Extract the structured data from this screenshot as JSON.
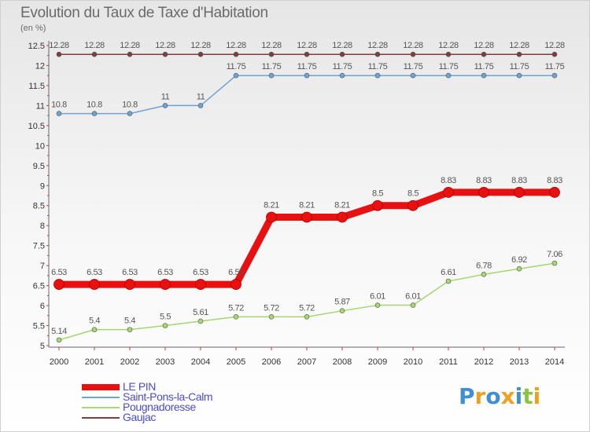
{
  "header": {
    "title": "Evolution du Taux de Taxe d'Habitation",
    "subtitle": "(en %)"
  },
  "chart_data": {
    "type": "line",
    "title": "Evolution du Taux de Taxe d'Habitation",
    "ylabel": "(en %)",
    "xlabel": "",
    "x": [
      "2000",
      "2001",
      "2002",
      "2003",
      "2004",
      "2005",
      "2006",
      "2007",
      "2008",
      "2009",
      "2010",
      "2011",
      "2012",
      "2013",
      "2014"
    ],
    "ylim": [
      5,
      12.5
    ],
    "yticks": [
      "5",
      "5.5",
      "6",
      "6.5",
      "7",
      "7.5",
      "8",
      "8.5",
      "9",
      "9.5",
      "10",
      "10.5",
      "11",
      "11.5",
      "12",
      "12.5"
    ],
    "grid": false,
    "legend_position": "bottom-left",
    "series": [
      {
        "name": "LE PIN",
        "color": "#e81010",
        "values": [
          6.53,
          6.53,
          6.53,
          6.53,
          6.53,
          6.53,
          8.21,
          8.21,
          8.21,
          8.5,
          8.5,
          8.83,
          8.83,
          8.83,
          8.83
        ],
        "labels": [
          "6.53",
          "6.53",
          "6.53",
          "6.53",
          "6.53",
          "6.53",
          "8.21",
          "8.21",
          "8.21",
          "8.5",
          "8.5",
          "8.83",
          "8.83",
          "8.83",
          "8.83"
        ]
      },
      {
        "name": "Saint-Pons-la-Calm",
        "color": "#6fa3d3",
        "values": [
          10.8,
          10.8,
          10.8,
          11,
          11,
          11.75,
          11.75,
          11.75,
          11.75,
          11.75,
          11.75,
          11.75,
          11.75,
          11.75,
          11.75
        ],
        "labels": [
          "10.8",
          "10.8",
          "10.8",
          "11",
          "11",
          "11.75",
          "11.75",
          "11.75",
          "11.75",
          "11.75",
          "11.75",
          "11.75",
          "11.75",
          "11.75",
          "11.75"
        ]
      },
      {
        "name": "Pougnadoresse",
        "color": "#a6d66e",
        "values": [
          5.14,
          5.4,
          5.4,
          5.5,
          5.61,
          5.72,
          5.72,
          5.72,
          5.87,
          6.01,
          6.01,
          6.61,
          6.78,
          6.92,
          7.06
        ],
        "labels": [
          "5.14",
          "5.4",
          "5.4",
          "5.5",
          "5.61",
          "5.72",
          "5.72",
          "5.72",
          "5.87",
          "6.01",
          "6.01",
          "6.61",
          "6.78",
          "6.92",
          "7.06"
        ]
      },
      {
        "name": "Gaujac",
        "color": "#7b3f3f",
        "values": [
          12.28,
          12.28,
          12.28,
          12.28,
          12.28,
          12.28,
          12.28,
          12.28,
          12.28,
          12.28,
          12.28,
          12.28,
          12.28,
          12.28,
          12.28
        ],
        "labels": [
          "12.28",
          "12.28",
          "12.28",
          "12.28",
          "12.28",
          "12.28",
          "12.28",
          "12.28",
          "12.28",
          "12.28",
          "12.28",
          "12.28",
          "12.28",
          "12.28",
          "12.28"
        ]
      }
    ]
  },
  "logo": {
    "letters": [
      "P",
      "r",
      "o",
      "x",
      "i",
      "t",
      "i"
    ],
    "colors": [
      "#3f8fd6",
      "#f0a020",
      "#3f8fd6",
      "#f0a020",
      "#3f8fd6",
      "#8cc63e",
      "#f0a020"
    ]
  }
}
